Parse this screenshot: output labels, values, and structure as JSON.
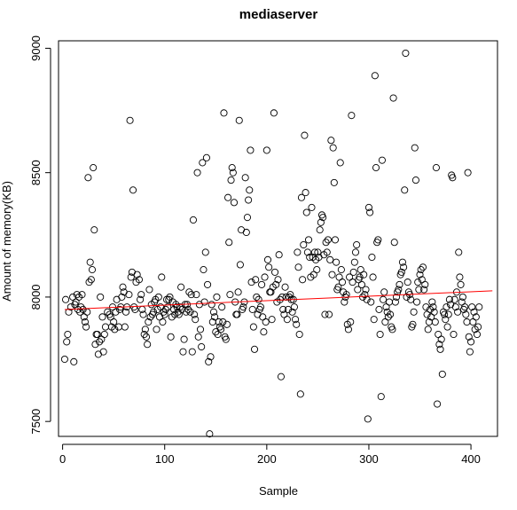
{
  "chart_data": {
    "type": "scatter",
    "title": "mediaserver",
    "xlabel": "Sample",
    "ylabel": "Amount of memory(KB)",
    "xlim": [
      -4,
      426
    ],
    "ylim": [
      7440,
      9030
    ],
    "xticks": [
      0,
      100,
      200,
      300,
      400
    ],
    "yticks": [
      7500,
      8000,
      8500,
      9000
    ],
    "grid": false,
    "trend_line": {
      "color": "#ff0000",
      "x": [
        2,
        421
      ],
      "y": [
        7950,
        8025
      ]
    },
    "points": [
      [
        2,
        7750
      ],
      [
        3,
        7990
      ],
      [
        4,
        7820
      ],
      [
        5,
        7850
      ],
      [
        6,
        7940
      ],
      [
        8,
        7960
      ],
      [
        10,
        8000
      ],
      [
        11,
        7740
      ],
      [
        12,
        7970
      ],
      [
        13,
        7980
      ],
      [
        14,
        8010
      ],
      [
        15,
        7950
      ],
      [
        16,
        8000
      ],
      [
        17,
        7940
      ],
      [
        18,
        7960
      ],
      [
        19,
        8010
      ],
      [
        20,
        7950
      ],
      [
        21,
        7920
      ],
      [
        22,
        7900
      ],
      [
        23,
        7880
      ],
      [
        24,
        7940
      ],
      [
        25,
        8480
      ],
      [
        26,
        8060
      ],
      [
        27,
        8140
      ],
      [
        28,
        8070
      ],
      [
        29,
        8110
      ],
      [
        30,
        8520
      ],
      [
        31,
        8270
      ],
      [
        32,
        7810
      ],
      [
        33,
        7850
      ],
      [
        34,
        7850
      ],
      [
        35,
        7770
      ],
      [
        36,
        7820
      ],
      [
        37,
        8000
      ],
      [
        38,
        7830
      ],
      [
        39,
        7920
      ],
      [
        40,
        7780
      ],
      [
        41,
        7850
      ],
      [
        42,
        7880
      ],
      [
        44,
        7940
      ],
      [
        46,
        7930
      ],
      [
        47,
        7920
      ],
      [
        48,
        7880
      ],
      [
        49,
        7960
      ],
      [
        50,
        7900
      ],
      [
        51,
        7870
      ],
      [
        52,
        7940
      ],
      [
        53,
        7990
      ],
      [
        55,
        7880
      ],
      [
        56,
        7950
      ],
      [
        57,
        7960
      ],
      [
        58,
        8000
      ],
      [
        59,
        8040
      ],
      [
        60,
        8020
      ],
      [
        61,
        7880
      ],
      [
        62,
        7940
      ],
      [
        63,
        7960
      ],
      [
        65,
        8010
      ],
      [
        66,
        8710
      ],
      [
        67,
        8080
      ],
      [
        68,
        8100
      ],
      [
        69,
        8430
      ],
      [
        70,
        7960
      ],
      [
        71,
        7950
      ],
      [
        72,
        8060
      ],
      [
        73,
        8090
      ],
      [
        75,
        8070
      ],
      [
        76,
        7990
      ],
      [
        77,
        8010
      ],
      [
        78,
        7950
      ],
      [
        79,
        7930
      ],
      [
        80,
        7850
      ],
      [
        81,
        7870
      ],
      [
        82,
        7840
      ],
      [
        83,
        7810
      ],
      [
        84,
        7900
      ],
      [
        85,
        8030
      ],
      [
        86,
        7920
      ],
      [
        87,
        7970
      ],
      [
        88,
        7930
      ],
      [
        89,
        7940
      ],
      [
        90,
        7980
      ],
      [
        91,
        7990
      ],
      [
        92,
        7870
      ],
      [
        93,
        7950
      ],
      [
        94,
        8000
      ],
      [
        95,
        7920
      ],
      [
        96,
        7960
      ],
      [
        97,
        8080
      ],
      [
        98,
        7900
      ],
      [
        99,
        7940
      ],
      [
        100,
        7930
      ],
      [
        101,
        7950
      ],
      [
        102,
        7990
      ],
      [
        103,
        7960
      ],
      [
        104,
        7990
      ],
      [
        105,
        8000
      ],
      [
        106,
        7840
      ],
      [
        107,
        7920
      ],
      [
        108,
        7980
      ],
      [
        109,
        7950
      ],
      [
        110,
        7930
      ],
      [
        111,
        7970
      ],
      [
        112,
        7960
      ],
      [
        113,
        7940
      ],
      [
        114,
        7930
      ],
      [
        115,
        7960
      ],
      [
        116,
        8040
      ],
      [
        117,
        7950
      ],
      [
        118,
        7780
      ],
      [
        119,
        7830
      ],
      [
        120,
        7970
      ],
      [
        121,
        7940
      ],
      [
        122,
        7970
      ],
      [
        123,
        7950
      ],
      [
        124,
        8020
      ],
      [
        125,
        7940
      ],
      [
        126,
        8010
      ],
      [
        127,
        7780
      ],
      [
        128,
        8310
      ],
      [
        129,
        7930
      ],
      [
        130,
        7910
      ],
      [
        131,
        8010
      ],
      [
        132,
        8500
      ],
      [
        133,
        7840
      ],
      [
        134,
        7970
      ],
      [
        135,
        7870
      ],
      [
        136,
        7800
      ],
      [
        137,
        8540
      ],
      [
        138,
        8110
      ],
      [
        139,
        7980
      ],
      [
        140,
        8180
      ],
      [
        141,
        8560
      ],
      [
        142,
        8050
      ],
      [
        143,
        7740
      ],
      [
        144,
        7450
      ],
      [
        145,
        7760
      ],
      [
        146,
        7970
      ],
      [
        147,
        7900
      ],
      [
        148,
        7940
      ],
      [
        149,
        7920
      ],
      [
        150,
        7860
      ],
      [
        151,
        8000
      ],
      [
        152,
        7850
      ],
      [
        153,
        7900
      ],
      [
        154,
        7880
      ],
      [
        155,
        7870
      ],
      [
        156,
        7960
      ],
      [
        157,
        7900
      ],
      [
        158,
        8740
      ],
      [
        159,
        7840
      ],
      [
        160,
        7830
      ],
      [
        161,
        7890
      ],
      [
        162,
        8400
      ],
      [
        163,
        8220
      ],
      [
        164,
        8010
      ],
      [
        165,
        8470
      ],
      [
        166,
        8520
      ],
      [
        167,
        8500
      ],
      [
        168,
        8380
      ],
      [
        169,
        7980
      ],
      [
        170,
        7930
      ],
      [
        171,
        7930
      ],
      [
        172,
        8020
      ],
      [
        173,
        8710
      ],
      [
        174,
        8130
      ],
      [
        175,
        8270
      ],
      [
        176,
        7950
      ],
      [
        177,
        7960
      ],
      [
        178,
        7980
      ],
      [
        179,
        8480
      ],
      [
        180,
        8260
      ],
      [
        181,
        8320
      ],
      [
        182,
        8390
      ],
      [
        183,
        8430
      ],
      [
        184,
        8590
      ],
      [
        185,
        8060
      ],
      [
        186,
        7950
      ],
      [
        187,
        7880
      ],
      [
        188,
        7790
      ],
      [
        189,
        8070
      ],
      [
        190,
        8000
      ],
      [
        191,
        7930
      ],
      [
        192,
        7990
      ],
      [
        193,
        7950
      ],
      [
        194,
        7960
      ],
      [
        195,
        8050
      ],
      [
        196,
        7920
      ],
      [
        197,
        7860
      ],
      [
        198,
        8080
      ],
      [
        199,
        7900
      ],
      [
        200,
        8590
      ],
      [
        201,
        8150
      ],
      [
        202,
        8120
      ],
      [
        203,
        8020
      ],
      [
        204,
        8020
      ],
      [
        205,
        7910
      ],
      [
        206,
        8040
      ],
      [
        207,
        8740
      ],
      [
        208,
        8100
      ],
      [
        209,
        8050
      ],
      [
        210,
        7980
      ],
      [
        211,
        8070
      ],
      [
        212,
        8170
      ],
      [
        213,
        7990
      ],
      [
        214,
        7680
      ],
      [
        215,
        8000
      ],
      [
        216,
        7950
      ],
      [
        217,
        7930
      ],
      [
        218,
        8040
      ],
      [
        219,
        8000
      ],
      [
        220,
        7910
      ],
      [
        221,
        7950
      ],
      [
        222,
        8000
      ],
      [
        223,
        8010
      ],
      [
        224,
        7990
      ],
      [
        225,
        7940
      ],
      [
        226,
        7990
      ],
      [
        227,
        7960
      ],
      [
        228,
        7910
      ],
      [
        229,
        7890
      ],
      [
        230,
        8180
      ],
      [
        231,
        8120
      ],
      [
        232,
        7850
      ],
      [
        233,
        7610
      ],
      [
        234,
        8400
      ],
      [
        235,
        8070
      ],
      [
        236,
        8210
      ],
      [
        237,
        8650
      ],
      [
        238,
        8420
      ],
      [
        239,
        8340
      ],
      [
        240,
        8180
      ],
      [
        241,
        8230
      ],
      [
        242,
        8160
      ],
      [
        243,
        8080
      ],
      [
        244,
        8360
      ],
      [
        245,
        8160
      ],
      [
        246,
        8090
      ],
      [
        247,
        8180
      ],
      [
        248,
        8150
      ],
      [
        249,
        8110
      ],
      [
        250,
        8180
      ],
      [
        251,
        8160
      ],
      [
        252,
        8270
      ],
      [
        253,
        8300
      ],
      [
        254,
        8330
      ],
      [
        255,
        8320
      ],
      [
        256,
        8170
      ],
      [
        257,
        7930
      ],
      [
        258,
        8220
      ],
      [
        259,
        8180
      ],
      [
        260,
        8230
      ],
      [
        261,
        7930
      ],
      [
        262,
        8150
      ],
      [
        263,
        8630
      ],
      [
        264,
        8090
      ],
      [
        265,
        8600
      ],
      [
        266,
        8460
      ],
      [
        267,
        8230
      ],
      [
        268,
        8140
      ],
      [
        269,
        8030
      ],
      [
        270,
        8040
      ],
      [
        271,
        8080
      ],
      [
        272,
        8540
      ],
      [
        273,
        8110
      ],
      [
        274,
        8060
      ],
      [
        275,
        8020
      ],
      [
        276,
        7980
      ],
      [
        277,
        8000
      ],
      [
        278,
        8010
      ],
      [
        279,
        7890
      ],
      [
        280,
        7870
      ],
      [
        281,
        8080
      ],
      [
        282,
        7900
      ],
      [
        283,
        8730
      ],
      [
        284,
        8060
      ],
      [
        285,
        8100
      ],
      [
        286,
        8140
      ],
      [
        287,
        8180
      ],
      [
        288,
        8210
      ],
      [
        289,
        8030
      ],
      [
        290,
        8070
      ],
      [
        291,
        8080
      ],
      [
        292,
        8110
      ],
      [
        293,
        8050
      ],
      [
        294,
        8000
      ],
      [
        295,
        8090
      ],
      [
        296,
        8010
      ],
      [
        297,
        8030
      ],
      [
        298,
        7990
      ],
      [
        299,
        7510
      ],
      [
        300,
        8360
      ],
      [
        301,
        8340
      ],
      [
        302,
        7980
      ],
      [
        303,
        8160
      ],
      [
        304,
        8080
      ],
      [
        305,
        7910
      ],
      [
        306,
        8890
      ],
      [
        307,
        8520
      ],
      [
        308,
        8220
      ],
      [
        309,
        8230
      ],
      [
        310,
        7950
      ],
      [
        311,
        7850
      ],
      [
        312,
        7600
      ],
      [
        313,
        8550
      ],
      [
        314,
        7990
      ],
      [
        315,
        8020
      ],
      [
        316,
        7900
      ],
      [
        317,
        7960
      ],
      [
        318,
        7940
      ],
      [
        319,
        7920
      ],
      [
        320,
        7980
      ],
      [
        321,
        7930
      ],
      [
        322,
        7880
      ],
      [
        323,
        7870
      ],
      [
        324,
        8800
      ],
      [
        325,
        8220
      ],
      [
        326,
        7980
      ],
      [
        327,
        8000
      ],
      [
        328,
        8020
      ],
      [
        329,
        8030
      ],
      [
        330,
        8050
      ],
      [
        331,
        8090
      ],
      [
        332,
        8100
      ],
      [
        333,
        8140
      ],
      [
        334,
        8120
      ],
      [
        335,
        8430
      ],
      [
        336,
        8980
      ],
      [
        337,
        8000
      ],
      [
        338,
        8060
      ],
      [
        339,
        8020
      ],
      [
        340,
        8010
      ],
      [
        341,
        7990
      ],
      [
        342,
        7880
      ],
      [
        343,
        7890
      ],
      [
        344,
        7940
      ],
      [
        345,
        8600
      ],
      [
        346,
        8470
      ],
      [
        347,
        7980
      ],
      [
        348,
        8060
      ],
      [
        349,
        8030
      ],
      [
        350,
        8090
      ],
      [
        351,
        8110
      ],
      [
        352,
        8070
      ],
      [
        353,
        8120
      ],
      [
        354,
        8030
      ],
      [
        355,
        8050
      ],
      [
        356,
        7960
      ],
      [
        357,
        7930
      ],
      [
        358,
        7870
      ],
      [
        359,
        7900
      ],
      [
        360,
        7950
      ],
      [
        361,
        7920
      ],
      [
        362,
        7980
      ],
      [
        363,
        7960
      ],
      [
        364,
        7940
      ],
      [
        365,
        7900
      ],
      [
        366,
        8520
      ],
      [
        367,
        7570
      ],
      [
        368,
        7850
      ],
      [
        369,
        7810
      ],
      [
        370,
        7790
      ],
      [
        371,
        7830
      ],
      [
        372,
        7690
      ],
      [
        373,
        7940
      ],
      [
        374,
        7930
      ],
      [
        375,
        7910
      ],
      [
        376,
        7960
      ],
      [
        377,
        7880
      ],
      [
        378,
        7930
      ],
      [
        379,
        7990
      ],
      [
        380,
        7970
      ],
      [
        381,
        8490
      ],
      [
        382,
        8480
      ],
      [
        383,
        7850
      ],
      [
        384,
        7990
      ],
      [
        385,
        7960
      ],
      [
        386,
        8020
      ],
      [
        387,
        7940
      ],
      [
        388,
        8180
      ],
      [
        389,
        8080
      ],
      [
        390,
        8050
      ],
      [
        391,
        7980
      ],
      [
        392,
        8000
      ],
      [
        393,
        7950
      ],
      [
        394,
        7960
      ],
      [
        395,
        7930
      ],
      [
        396,
        7900
      ],
      [
        397,
        8500
      ],
      [
        398,
        7840
      ],
      [
        399,
        7780
      ],
      [
        400,
        7820
      ],
      [
        401,
        7960
      ],
      [
        402,
        7900
      ],
      [
        403,
        7940
      ],
      [
        404,
        7870
      ],
      [
        405,
        7920
      ],
      [
        406,
        7850
      ],
      [
        407,
        7880
      ],
      [
        408,
        7960
      ]
    ]
  }
}
